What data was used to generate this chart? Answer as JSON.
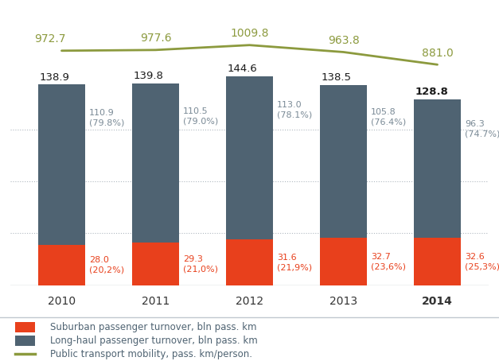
{
  "years": [
    2010,
    2011,
    2012,
    2013,
    2014
  ],
  "suburban": [
    28.0,
    29.3,
    31.6,
    32.7,
    32.6
  ],
  "suburban_pct": [
    "(20,2%)",
    "(21,0%)",
    "(21,9%)",
    "(23,6%)",
    "(25,3%)"
  ],
  "longhaul": [
    110.9,
    110.5,
    113.0,
    105.8,
    96.3
  ],
  "longhaul_pct": [
    "(79.8%)",
    "(79.0%)",
    "(78.1%)",
    "(76.4%)",
    "(74.7%)"
  ],
  "total": [
    138.9,
    139.8,
    144.6,
    138.5,
    128.8
  ],
  "mobility": [
    972.7,
    977.6,
    1009.8,
    963.8,
    881.0
  ],
  "bar_color_suburban": "#e8401c",
  "bar_color_longhaul": "#4f6372",
  "line_color": "#8c9a3e",
  "bg_color": "#dde2e8",
  "text_color_dark": "#1a1a1a",
  "text_color_grey": "#7a8a96",
  "text_color_red": "#e8401c",
  "bar_width": 0.5
}
